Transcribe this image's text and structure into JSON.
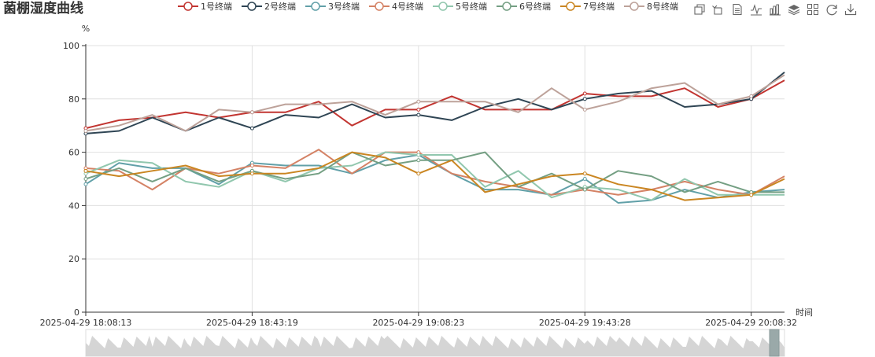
{
  "chart_data": {
    "type": "line",
    "title": "菌棚湿度曲线",
    "ylabel": "%",
    "xlabel": "时间",
    "ylim": [
      0,
      100
    ],
    "yticks": [
      0,
      20,
      40,
      60,
      80,
      100
    ],
    "x_tick_labels": [
      "2025-04-29 18:08:13",
      "2025-04-29 18:43:19",
      "2025-04-29 19:08:23",
      "2025-04-29 19:43:28",
      "2025-04-29 20:08:32"
    ],
    "grid": true,
    "legend_position": "top",
    "series": [
      {
        "name": "1号终端",
        "color": "#c23531",
        "values": [
          69,
          72,
          73,
          75,
          73,
          75,
          75,
          79,
          70,
          76,
          76,
          81,
          76,
          76,
          76,
          82,
          81,
          81,
          84,
          77,
          80,
          87
        ]
      },
      {
        "name": "2号终端",
        "color": "#2f4554",
        "values": [
          67,
          68,
          73,
          68,
          73,
          69,
          74,
          73,
          78,
          73,
          74,
          72,
          77,
          80,
          76,
          80,
          82,
          83,
          77,
          78,
          80,
          90
        ]
      },
      {
        "name": "3号终端",
        "color": "#61a0a8",
        "values": [
          48,
          56,
          54,
          54,
          48,
          56,
          55,
          55,
          52,
          57,
          59,
          52,
          46,
          46,
          44,
          50,
          41,
          42,
          46,
          43,
          45,
          46
        ]
      },
      {
        "name": "4号终端",
        "color": "#d48265",
        "values": [
          54,
          53,
          46,
          54,
          52,
          55,
          54,
          61,
          52,
          60,
          60,
          52,
          49,
          47,
          44,
          46,
          44,
          46,
          49,
          46,
          44,
          51
        ]
      },
      {
        "name": "5号终端",
        "color": "#91c7ae",
        "values": [
          52,
          57,
          56,
          49,
          47,
          53,
          49,
          54,
          55,
          60,
          59,
          59,
          47,
          53,
          43,
          47,
          46,
          42,
          50,
          44,
          44,
          44
        ]
      },
      {
        "name": "6号终端",
        "color": "#749f83",
        "values": [
          50,
          54,
          49,
          54,
          49,
          53,
          50,
          52,
          60,
          55,
          57,
          57,
          60,
          47,
          52,
          46,
          53,
          51,
          45,
          49,
          45,
          45
        ]
      },
      {
        "name": "7号终端",
        "color": "#ca8622",
        "values": [
          53,
          51,
          53,
          55,
          51,
          52,
          52,
          54,
          60,
          58,
          52,
          57,
          45,
          48,
          51,
          52,
          48,
          46,
          42,
          43,
          44,
          50
        ]
      },
      {
        "name": "8号终端",
        "color": "#bda29a",
        "values": [
          68,
          70,
          74,
          68,
          76,
          75,
          78,
          78,
          79,
          74,
          79,
          79,
          79,
          75,
          84,
          76,
          79,
          84,
          86,
          78,
          81,
          89
        ]
      }
    ]
  },
  "toolbox": {
    "icons": [
      "zoom-icon",
      "zoom-reset-icon",
      "data-view-icon",
      "line-chart-icon",
      "bar-chart-icon",
      "stack-icon",
      "tiled-icon",
      "restore-icon",
      "save-image-icon"
    ]
  }
}
